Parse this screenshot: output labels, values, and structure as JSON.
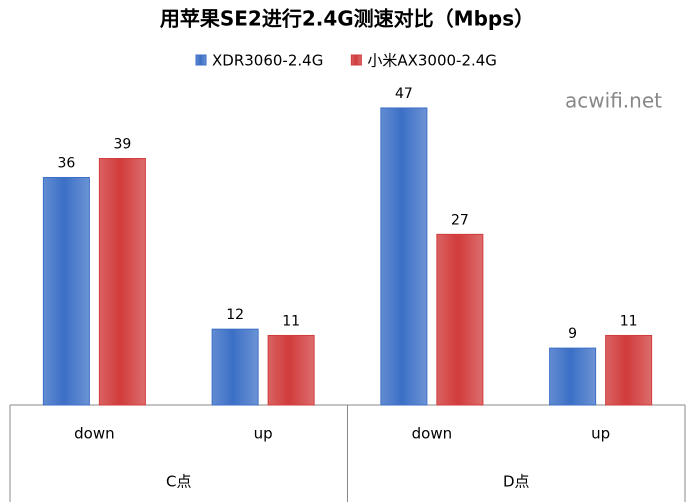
{
  "chart_data": {
    "type": "bar",
    "title": "用苹果SE2进行2.4G测速对比（Mbps）",
    "watermark": "acwifi.net",
    "groups": [
      {
        "name": "C点",
        "categories": [
          "down",
          "up"
        ]
      },
      {
        "name": "D点",
        "categories": [
          "down",
          "up"
        ]
      }
    ],
    "series": [
      {
        "name": "XDR3060-2.4G",
        "color": "#3b6fc6",
        "values": [
          36,
          12,
          47,
          9
        ]
      },
      {
        "name": "小米AX3000-2.4G",
        "color": "#d13b3b",
        "values": [
          39,
          11,
          27,
          11
        ]
      }
    ],
    "legend": "top"
  }
}
